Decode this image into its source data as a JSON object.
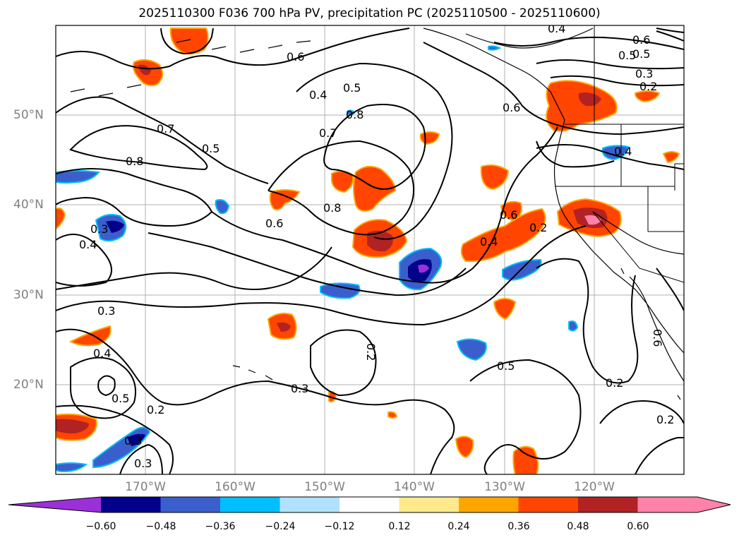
{
  "title": "2025110300 F036 700 hPa PV, precipitation PC (2025110500 - 2025110600)",
  "map": {
    "lat_labels": [
      "50°N",
      "40°N",
      "30°N",
      "20°N"
    ],
    "lon_labels": [
      "170°W",
      "160°W",
      "150°W",
      "140°W",
      "130°W",
      "120°W"
    ],
    "contour_labels": [
      "0.4",
      "0.6",
      "0.5",
      "0.6",
      "0.4",
      "0.5",
      "0.8",
      "0.7",
      "0.7",
      "0.5",
      "0.8",
      "0.6",
      "0.8",
      "0.3",
      "0.4",
      "0.3",
      "0.4",
      "0.5",
      "0.2",
      "0.3",
      "0.3",
      "0.3",
      "0.2",
      "0.5",
      "0.2",
      "0.2",
      "0.6",
      "0.4",
      "0.2",
      "0.6",
      "0.4",
      "0.5",
      "0.3",
      "0.2",
      "0.6"
    ]
  },
  "colorbar": {
    "ticks": [
      "−0.60",
      "−0.48",
      "−0.36",
      "−0.24",
      "−0.12",
      "0.12",
      "0.24",
      "0.36",
      "0.48",
      "0.60"
    ],
    "colors": [
      "#9b30d8",
      "#00008b",
      "#3a5fcd",
      "#00bfff",
      "#b0e2ff",
      "#ffffff",
      "#ffe98c",
      "#ffa500",
      "#ff4500",
      "#b22222",
      "#ff82ab",
      "#ff82ab"
    ]
  }
}
